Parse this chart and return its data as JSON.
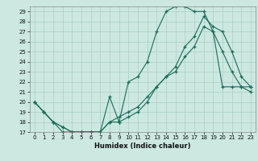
{
  "xlabel": "Humidex (Indice chaleur)",
  "xlim": [
    -0.5,
    23.5
  ],
  "ylim": [
    17,
    29.5
  ],
  "yticks": [
    17,
    18,
    19,
    20,
    21,
    22,
    23,
    24,
    25,
    26,
    27,
    28,
    29
  ],
  "xticks": [
    0,
    1,
    2,
    3,
    4,
    5,
    6,
    7,
    8,
    9,
    10,
    11,
    12,
    13,
    14,
    15,
    16,
    17,
    18,
    19,
    20,
    21,
    22,
    23
  ],
  "bg_color": "#cce8e0",
  "line_color": "#1a6b5a",
  "grid_color": "#aacfc8",
  "line1_x": [
    0,
    1,
    2,
    3,
    4,
    5,
    6,
    7,
    8,
    9,
    10,
    11,
    12,
    13,
    14,
    15,
    16,
    17,
    18,
    19,
    20,
    21,
    22,
    23
  ],
  "line1_y": [
    20.0,
    19.0,
    18.0,
    17.0,
    17.0,
    17.0,
    17.0,
    17.0,
    20.5,
    18.0,
    22.0,
    22.5,
    24.0,
    27.0,
    29.0,
    29.5,
    29.5,
    29.0,
    29.0,
    27.0,
    25.0,
    23.0,
    21.5,
    21.0
  ],
  "line2_x": [
    0,
    1,
    2,
    3,
    4,
    5,
    6,
    7,
    8,
    9,
    10,
    11,
    12,
    13,
    14,
    15,
    16,
    17,
    18,
    19,
    20,
    21,
    22,
    23
  ],
  "line2_y": [
    20.0,
    19.0,
    18.0,
    17.5,
    17.0,
    17.0,
    17.0,
    17.0,
    18.0,
    18.5,
    19.0,
    19.5,
    20.5,
    21.5,
    22.5,
    23.5,
    25.5,
    26.5,
    28.5,
    27.5,
    27.0,
    25.0,
    22.5,
    21.5
  ],
  "line3_x": [
    0,
    1,
    2,
    3,
    4,
    5,
    6,
    7,
    8,
    9,
    10,
    11,
    12,
    13,
    14,
    15,
    16,
    17,
    18,
    19,
    20,
    21,
    22,
    23
  ],
  "line3_y": [
    20.0,
    19.0,
    18.0,
    17.5,
    17.0,
    17.0,
    17.0,
    17.0,
    18.0,
    18.0,
    18.5,
    19.0,
    20.0,
    21.5,
    22.5,
    23.0,
    24.5,
    25.5,
    27.5,
    27.0,
    21.5,
    21.5,
    21.5,
    21.5
  ]
}
